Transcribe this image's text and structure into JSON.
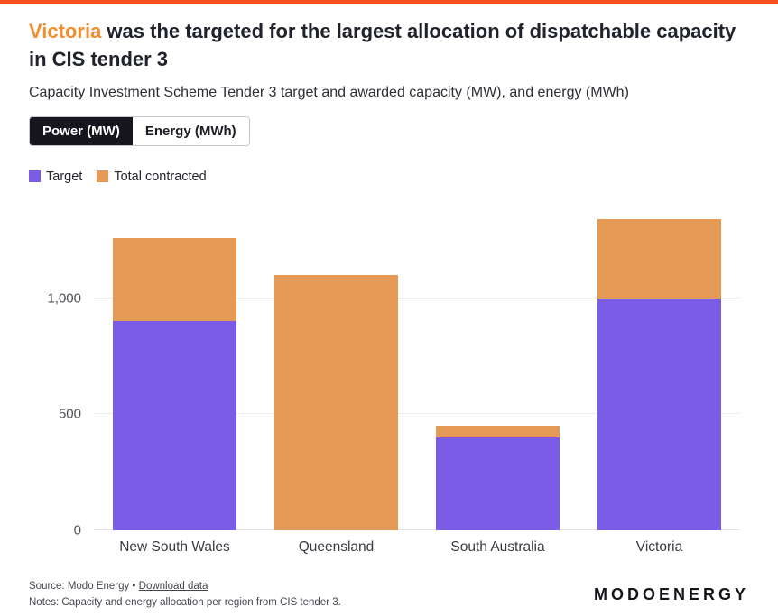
{
  "accent_bar_color": "#f4511e",
  "header": {
    "title_highlight": "Victoria",
    "highlight_color": "#ef8d2f",
    "title_rest": " was the targeted for the largest allocation of dispatchable capacity in CIS tender 3",
    "subtitle": "Capacity Investment Scheme Tender 3 target and awarded capacity (MW), and energy (MWh)"
  },
  "tabs": [
    {
      "label": "Power (MW)",
      "active": true
    },
    {
      "label": "Energy (MWh)",
      "active": false
    }
  ],
  "legend": [
    {
      "label": "Target",
      "color": "#7a5ce6"
    },
    {
      "label": "Total contracted",
      "color": "#e49a54"
    }
  ],
  "chart_data": {
    "type": "bar",
    "title": "Capacity Investment Scheme Tender 3 target and awarded capacity (MW)",
    "categories": [
      "New South Wales",
      "Queensland",
      "South Australia",
      "Victoria"
    ],
    "series": [
      {
        "name": "Target",
        "color": "#7a5ce6",
        "values": [
          900,
          0,
          400,
          1000
        ]
      },
      {
        "name": "Total contracted",
        "color": "#e49a54",
        "values": [
          1260,
          1100,
          450,
          1340
        ]
      }
    ],
    "xlabel": "",
    "ylabel": "",
    "ylim": [
      0,
      1400
    ],
    "yticks": [
      0,
      500,
      1000
    ],
    "grid": true,
    "legend_position": "top-left"
  },
  "footer": {
    "source_prefix": "Source: Modo Energy • ",
    "source_link": "Download data",
    "notes": "Notes: Capacity and energy allocation per region from CIS tender 3.",
    "brand": "MODOENERGY"
  }
}
